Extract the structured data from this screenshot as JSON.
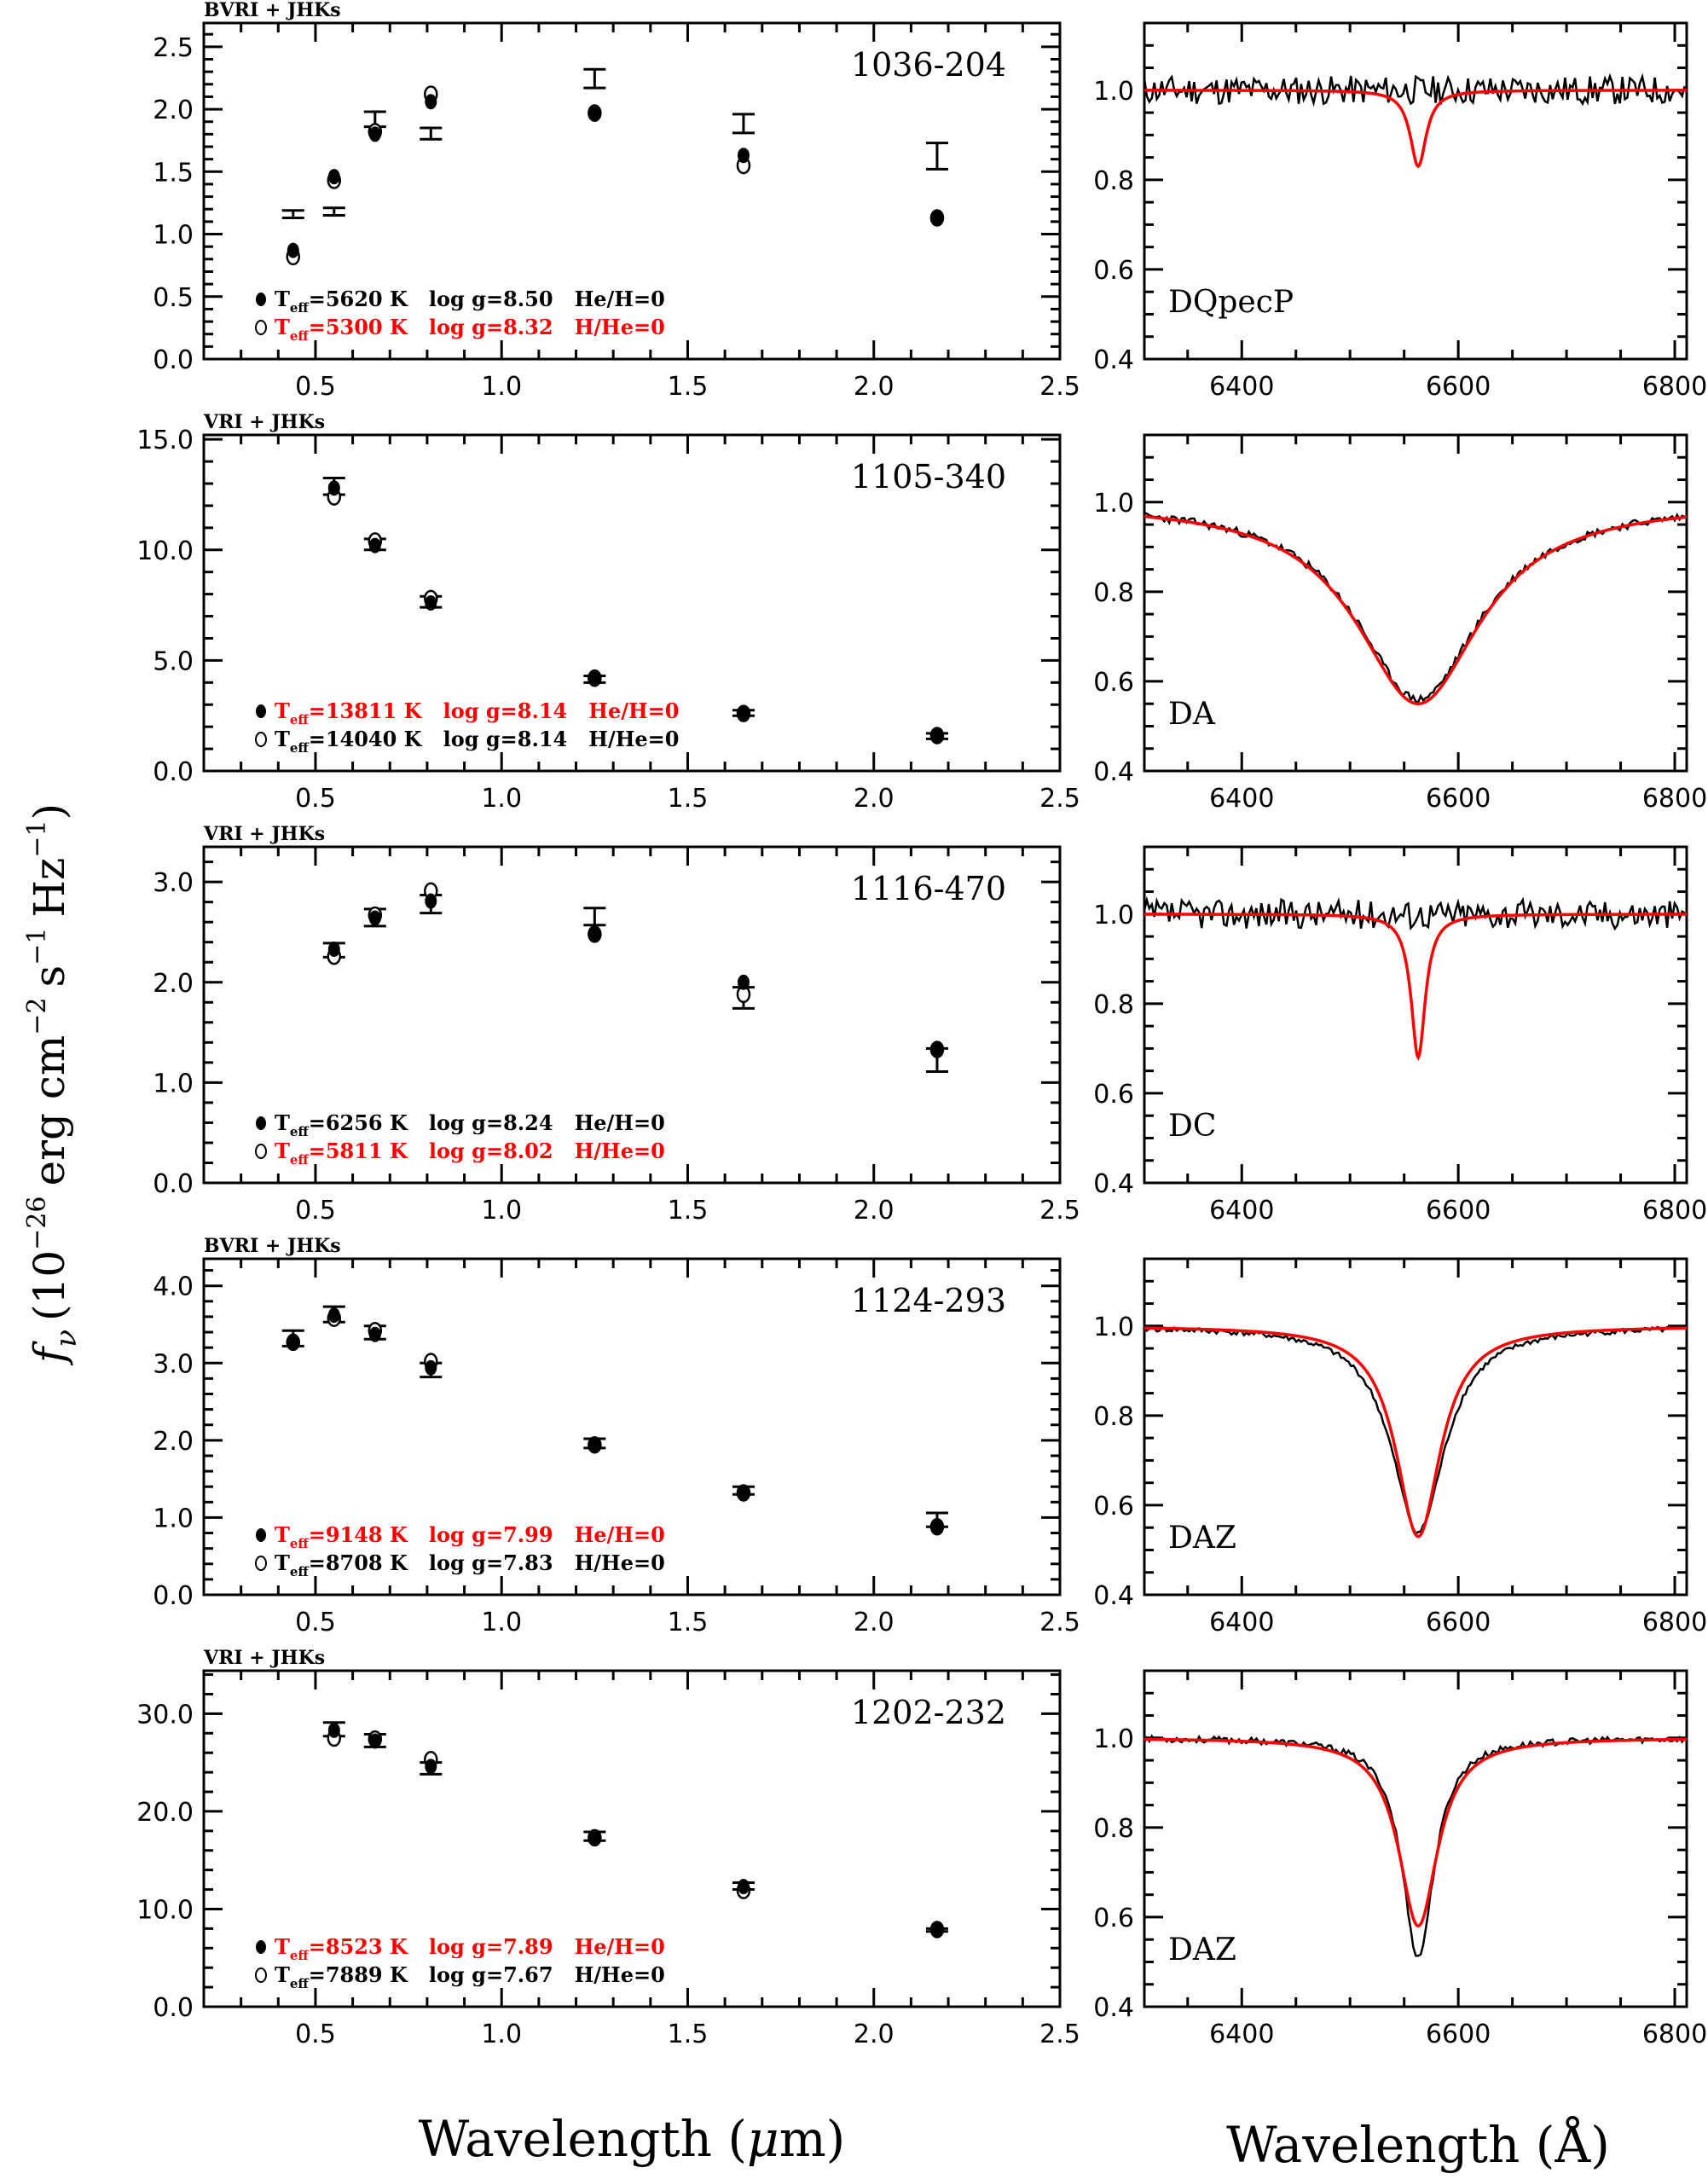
{
  "chart_data": {
    "type": "scatter",
    "figure": {
      "ylabel": "f_ν (10^-26 erg cm^-2 s^-1 Hz^-1)",
      "ylabel_parts": {
        "f": "f",
        "nu": "ν",
        "open": "(10",
        "exp26": "−26",
        "erg": "erg cm",
        "expm2": "−2",
        "s": "s",
        "expm1a": "−1",
        "hz": "Hz",
        "expm1b": "−1",
        "close": ")"
      },
      "left_xlabel": "Wavelength (μm)",
      "left_xlabel_parts": {
        "word": "Wavelength (",
        "mu": "μ",
        "unit": "m)"
      },
      "right_xlabel": "Wavelength (Å)"
    },
    "photometry_xlim": [
      0.2,
      2.5
    ],
    "photometry_xticks": [
      "0.5",
      "1.0",
      "1.5",
      "2.0",
      "2.5"
    ],
    "spectrum_xlim": [
      6310,
      6811
    ],
    "spectrum_ylim": [
      0.4,
      1.15
    ],
    "spectrum_xticks": [
      "6400",
      "6600",
      "6800"
    ],
    "spectrum_yticks": [
      "0.4",
      "0.6",
      "0.8",
      "1.0"
    ],
    "colors": {
      "model_red": "#ff0000",
      "data_black": "#000000"
    },
    "panels": [
      {
        "name": "1036-204",
        "bands_label": "BVRI + JHKs",
        "ylim": [
          0,
          2.69
        ],
        "yticks": [
          "0.0",
          "0.5",
          "1.0",
          "1.5",
          "2.0",
          "2.5"
        ],
        "ytick_step": 0.5,
        "legend": [
          {
            "marker": "filled",
            "teff": "5620",
            "logg": "8.50",
            "comp": "He/H=0",
            "color": "#000000"
          },
          {
            "marker": "open",
            "teff": "5300",
            "logg": "8.32",
            "comp": "H/He=0",
            "color": "#ff0000"
          }
        ],
        "observed": [
          {
            "x": 0.44,
            "lo": 1.13,
            "hi": 1.19
          },
          {
            "x": 0.55,
            "lo": 1.15,
            "hi": 1.21
          },
          {
            "x": 0.66,
            "lo": 1.86,
            "hi": 1.98
          },
          {
            "x": 0.81,
            "lo": 1.76,
            "hi": 1.85
          },
          {
            "x": 1.25,
            "lo": 2.17,
            "hi": 2.32
          },
          {
            "x": 1.65,
            "lo": 1.81,
            "hi": 1.96
          },
          {
            "x": 2.17,
            "lo": 1.52,
            "hi": 1.73
          }
        ],
        "filled": [
          [
            0.44,
            0.87
          ],
          [
            0.55,
            1.46
          ],
          [
            0.66,
            1.8
          ],
          [
            0.81,
            2.06
          ],
          [
            1.25,
            1.96
          ],
          [
            1.65,
            1.63
          ],
          [
            2.17,
            1.13
          ]
        ],
        "open": [
          [
            0.44,
            0.82
          ],
          [
            0.55,
            1.43
          ],
          [
            0.66,
            1.82
          ],
          [
            0.81,
            2.12
          ],
          [
            1.25,
            1.97
          ],
          [
            1.65,
            1.55
          ],
          [
            2.17,
            1.13
          ]
        ],
        "spectral_type": "DQpecP",
        "spectrum": {
          "noise": 0.025,
          "obs_depth": 0.0,
          "obs_width": 0,
          "model_depth": 0.17,
          "model_width": 9,
          "seed": 11
        }
      },
      {
        "name": "1105-340",
        "bands_label": "VRI + JHKs",
        "ylim": [
          0,
          15.2
        ],
        "yticks": [
          "0.0",
          "5.0",
          "10.0",
          "15.0"
        ],
        "ytick_step": 5,
        "legend": [
          {
            "marker": "filled",
            "teff": "13811",
            "logg": "8.14",
            "comp": "He/H=0",
            "color": "#ff0000"
          },
          {
            "marker": "open",
            "teff": "14040",
            "logg": "8.14",
            "comp": "H/He=0",
            "color": "#000000"
          }
        ],
        "observed": [
          {
            "x": 0.55,
            "lo": 12.5,
            "hi": 13.25
          },
          {
            "x": 0.66,
            "lo": 10.0,
            "hi": 10.5
          },
          {
            "x": 0.81,
            "lo": 7.4,
            "hi": 7.9
          },
          {
            "x": 1.25,
            "lo": 4.0,
            "hi": 4.3
          },
          {
            "x": 1.65,
            "lo": 2.5,
            "hi": 2.75
          },
          {
            "x": 2.17,
            "lo": 1.45,
            "hi": 1.7
          }
        ],
        "filled": [
          [
            0.55,
            12.8
          ],
          [
            0.66,
            10.2
          ],
          [
            0.81,
            7.6
          ],
          [
            1.25,
            4.15
          ],
          [
            1.65,
            2.6
          ],
          [
            2.17,
            1.6
          ]
        ],
        "open": [
          [
            0.55,
            12.4
          ],
          [
            0.66,
            10.4
          ],
          [
            0.81,
            7.8
          ],
          [
            1.25,
            4.2
          ],
          [
            1.65,
            2.6
          ],
          [
            2.17,
            1.6
          ]
        ],
        "spectral_type": "DA",
        "spectrum": {
          "noise": 0.009,
          "obs_depth": 0.44,
          "obs_width": 70,
          "model_depth": 0.45,
          "model_width": 70,
          "seed": 23
        }
      },
      {
        "name": "1116-470",
        "bands_label": "VRI + JHKs",
        "ylim": [
          0,
          3.35
        ],
        "yticks": [
          "0.0",
          "1.0",
          "2.0",
          "3.0"
        ],
        "ytick_step": 1,
        "legend": [
          {
            "marker": "filled",
            "teff": "6256",
            "logg": "8.24",
            "comp": "He/H=0",
            "color": "#000000"
          },
          {
            "marker": "open",
            "teff": "5811",
            "logg": "8.02",
            "comp": "H/He=0",
            "color": "#ff0000"
          }
        ],
        "observed": [
          {
            "x": 0.55,
            "lo": 2.25,
            "hi": 2.39
          },
          {
            "x": 0.66,
            "lo": 2.56,
            "hi": 2.73
          },
          {
            "x": 0.81,
            "lo": 2.69,
            "hi": 2.87
          },
          {
            "x": 1.25,
            "lo": 2.57,
            "hi": 2.74
          },
          {
            "x": 1.65,
            "lo": 1.74,
            "hi": 1.95
          },
          {
            "x": 2.17,
            "lo": 1.11,
            "hi": 1.34
          }
        ],
        "filled": [
          [
            0.55,
            2.33
          ],
          [
            0.66,
            2.64
          ],
          [
            0.81,
            2.81
          ],
          [
            1.25,
            2.47
          ],
          [
            1.65,
            2.0
          ],
          [
            2.17,
            1.34
          ]
        ],
        "open": [
          [
            0.55,
            2.26
          ],
          [
            0.66,
            2.67
          ],
          [
            0.81,
            2.91
          ],
          [
            1.25,
            2.48
          ],
          [
            1.65,
            1.88
          ],
          [
            2.17,
            1.33
          ]
        ],
        "spectral_type": "DC",
        "spectrum": {
          "noise": 0.025,
          "obs_depth": 0.0,
          "obs_width": 0,
          "model_depth": 0.32,
          "model_width": 8,
          "seed": 37
        }
      },
      {
        "name": "1124-293",
        "bands_label": "BVRI + JHKs",
        "ylim": [
          0,
          4.35
        ],
        "yticks": [
          "0.0",
          "1.0",
          "2.0",
          "3.0",
          "4.0"
        ],
        "ytick_step": 1,
        "legend": [
          {
            "marker": "filled",
            "teff": "9148",
            "logg": "7.99",
            "comp": "He/H=0",
            "color": "#ff0000"
          },
          {
            "marker": "open",
            "teff": "8708",
            "logg": "7.83",
            "comp": "H/He=0",
            "color": "#000000"
          }
        ],
        "observed": [
          {
            "x": 0.44,
            "lo": 3.22,
            "hi": 3.42
          },
          {
            "x": 0.55,
            "lo": 3.53,
            "hi": 3.73
          },
          {
            "x": 0.66,
            "lo": 3.31,
            "hi": 3.48
          },
          {
            "x": 0.81,
            "lo": 2.82,
            "hi": 3.0
          },
          {
            "x": 1.25,
            "lo": 1.9,
            "hi": 2.02
          },
          {
            "x": 1.65,
            "lo": 1.3,
            "hi": 1.4
          },
          {
            "x": 2.17,
            "lo": 0.88,
            "hi": 1.06
          }
        ],
        "filled": [
          [
            0.44,
            3.28
          ],
          [
            0.55,
            3.62
          ],
          [
            0.66,
            3.37
          ],
          [
            0.81,
            2.94
          ],
          [
            1.25,
            1.94
          ],
          [
            1.65,
            1.33
          ],
          [
            2.17,
            0.87
          ]
        ],
        "open": [
          [
            0.44,
            3.27
          ],
          [
            0.55,
            3.58
          ],
          [
            0.66,
            3.42
          ],
          [
            0.81,
            3.02
          ],
          [
            1.25,
            1.94
          ],
          [
            1.65,
            1.32
          ],
          [
            2.17,
            0.88
          ]
        ],
        "spectral_type": "DAZ",
        "spectrum": {
          "noise": 0.006,
          "obs_depth": 0.46,
          "obs_width": 30,
          "model_depth": 0.47,
          "model_width": 25,
          "seed": 41
        }
      },
      {
        "name": "1202-232",
        "bands_label": "VRI + JHKs",
        "ylim": [
          0,
          34.4
        ],
        "yticks": [
          "0.0",
          "10.0",
          "20.0",
          "30.0"
        ],
        "ytick_step": 10,
        "legend": [
          {
            "marker": "filled",
            "teff": "8523",
            "logg": "7.89",
            "comp": "He/H=0",
            "color": "#ff0000"
          },
          {
            "marker": "open",
            "teff": "7889",
            "logg": "7.67",
            "comp": "H/He=0",
            "color": "#000000"
          }
        ],
        "observed": [
          {
            "x": 0.55,
            "lo": 27.7,
            "hi": 29.1
          },
          {
            "x": 0.66,
            "lo": 26.6,
            "hi": 27.9
          },
          {
            "x": 0.81,
            "lo": 23.8,
            "hi": 25.0
          },
          {
            "x": 1.25,
            "lo": 17.0,
            "hi": 17.9
          },
          {
            "x": 1.65,
            "lo": 12.0,
            "hi": 12.7
          },
          {
            "x": 2.17,
            "lo": 7.7,
            "hi": 8.0
          }
        ],
        "filled": [
          [
            0.55,
            28.3
          ],
          [
            0.66,
            27.2
          ],
          [
            0.81,
            24.6
          ],
          [
            1.25,
            17.2
          ],
          [
            1.65,
            12.3
          ],
          [
            2.17,
            7.9
          ]
        ],
        "open": [
          [
            0.55,
            27.5
          ],
          [
            0.66,
            27.4
          ],
          [
            0.81,
            25.3
          ],
          [
            1.25,
            17.3
          ],
          [
            1.65,
            11.9
          ],
          [
            2.17,
            7.9
          ]
        ],
        "spectral_type": "DAZ",
        "spectrum": {
          "noise": 0.007,
          "obs_depth": 0.49,
          "obs_width": 18,
          "model_depth": 0.42,
          "model_width": 22,
          "seed": 53
        }
      }
    ]
  }
}
